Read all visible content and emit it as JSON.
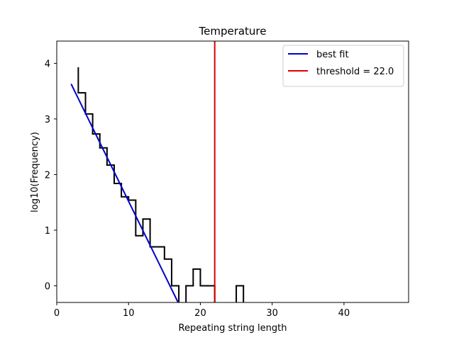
{
  "chart_data": {
    "type": "line",
    "title": "Temperature",
    "xlabel": "Repeating string length",
    "ylabel": "log10(Frequency)",
    "xlim": [
      0,
      49
    ],
    "ylim": [
      -0.3,
      4.4
    ],
    "xticks": [
      0,
      10,
      20,
      30,
      40
    ],
    "yticks": [
      0,
      1,
      2,
      3,
      4
    ],
    "grid": false,
    "legend_position": "top-right",
    "series": [
      {
        "name": "",
        "kind": "step",
        "color": "#000000",
        "x": [
          3,
          4,
          5,
          6,
          7,
          8,
          9,
          10,
          11,
          12,
          13,
          14,
          15,
          16,
          17,
          18,
          19,
          20,
          21,
          22,
          23,
          24,
          25,
          26
        ],
        "y": [
          3.47,
          3.09,
          2.73,
          2.48,
          2.17,
          1.84,
          1.6,
          1.54,
          0.9,
          1.2,
          0.7,
          0.7,
          0.48,
          0.0,
          null,
          0.0,
          0.3,
          0.0,
          0.0,
          null,
          null,
          null,
          0.0,
          null
        ],
        "step_start_top": 3.93
      },
      {
        "name": "best fit",
        "kind": "line",
        "color": "#0000cc",
        "x": [
          2,
          16.9
        ],
        "y": [
          3.63,
          -0.3
        ]
      },
      {
        "name": "threshold = 22.0",
        "kind": "vline",
        "color": "#dd0000",
        "x": 22.0
      }
    ]
  }
}
